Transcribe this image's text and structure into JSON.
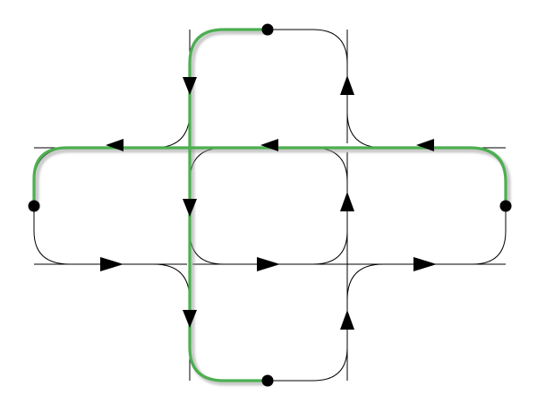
{
  "diagram": {
    "line_color": "#000000",
    "route_color": "#4caf50",
    "node_color": "#000000",
    "arrow_color": "#000000"
  }
}
